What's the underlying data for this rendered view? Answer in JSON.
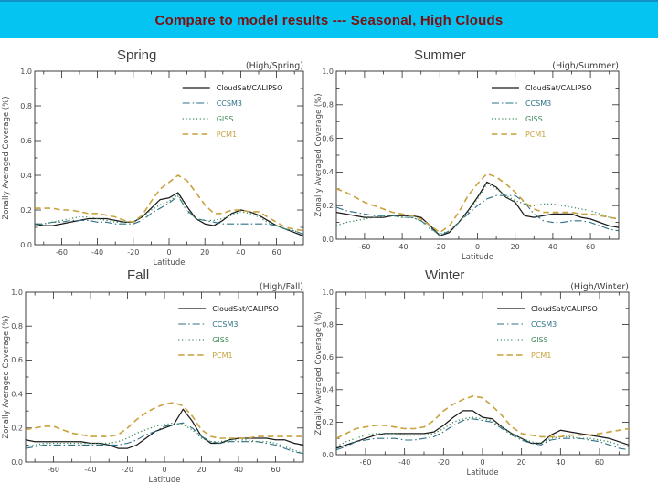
{
  "header": {
    "title": "Compare to model results --- Seasonal, High Clouds",
    "bar_color": "#05c4f2",
    "top_edge_color": "#1193c7",
    "text_color": "#7d0f0f"
  },
  "colors": {
    "cloudsat": "#1a1a1a",
    "ccsm3": "#2e7087",
    "giss": "#3c8a5a",
    "pcm1": "#c9a13d"
  },
  "legend_labels": [
    "CloudSat/CALIPSO",
    "CCSM3",
    "GISS",
    "PCM1"
  ],
  "chart_data": [
    {
      "id": "spring",
      "season_label": "Spring",
      "title": "(High/Spring)",
      "type": "line",
      "xlabel": "Latitude",
      "ylabel": "Zonally Averaged Coverage (%)",
      "xlim": [
        -75,
        75
      ],
      "ylim": [
        0,
        1.0
      ],
      "xticks": [
        -60,
        -40,
        -20,
        0,
        20,
        40,
        60
      ],
      "yticks": [
        0.0,
        0.2,
        0.4,
        0.6,
        0.8,
        1.0
      ],
      "legend_position": "top-right-inside",
      "grid": false,
      "x": [
        -75,
        -70,
        -65,
        -60,
        -55,
        -50,
        -45,
        -40,
        -35,
        -30,
        -25,
        -20,
        -15,
        -10,
        -5,
        0,
        5,
        10,
        15,
        20,
        25,
        30,
        35,
        40,
        45,
        50,
        55,
        60,
        65,
        70,
        75
      ],
      "series": [
        {
          "name": "CloudSat/CALIPSO",
          "color_key": "cloudsat",
          "style": "solid",
          "values": [
            0.12,
            0.11,
            0.11,
            0.12,
            0.13,
            0.14,
            0.15,
            0.15,
            0.15,
            0.14,
            0.13,
            0.13,
            0.16,
            0.21,
            0.26,
            0.27,
            0.3,
            0.22,
            0.15,
            0.12,
            0.11,
            0.14,
            0.18,
            0.2,
            0.19,
            0.17,
            0.14,
            0.11,
            0.09,
            0.07,
            0.05
          ]
        },
        {
          "name": "CCSM3",
          "color_key": "ccsm3",
          "style": "dashdot",
          "values": [
            0.12,
            0.12,
            0.13,
            0.13,
            0.14,
            0.14,
            0.14,
            0.13,
            0.13,
            0.12,
            0.12,
            0.12,
            0.14,
            0.18,
            0.21,
            0.24,
            0.28,
            0.2,
            0.15,
            0.14,
            0.13,
            0.12,
            0.12,
            0.12,
            0.12,
            0.12,
            0.12,
            0.11,
            0.09,
            0.08,
            0.06
          ]
        },
        {
          "name": "GISS",
          "color_key": "giss",
          "style": "dotted",
          "values": [
            0.11,
            0.12,
            0.13,
            0.14,
            0.15,
            0.16,
            0.16,
            0.15,
            0.14,
            0.13,
            0.13,
            0.13,
            0.16,
            0.2,
            0.23,
            0.25,
            0.29,
            0.19,
            0.15,
            0.14,
            0.14,
            0.15,
            0.17,
            0.19,
            0.18,
            0.16,
            0.13,
            0.11,
            0.09,
            0.08,
            0.06
          ]
        },
        {
          "name": "PCM1",
          "color_key": "pcm1",
          "style": "dashed",
          "values": [
            0.21,
            0.21,
            0.21,
            0.2,
            0.2,
            0.19,
            0.18,
            0.18,
            0.17,
            0.16,
            0.14,
            0.13,
            0.17,
            0.25,
            0.32,
            0.36,
            0.4,
            0.37,
            0.3,
            0.23,
            0.18,
            0.18,
            0.2,
            0.2,
            0.19,
            0.19,
            0.16,
            0.13,
            0.1,
            0.09,
            0.08
          ]
        }
      ]
    },
    {
      "id": "summer",
      "season_label": "Summer",
      "title": "(High/Summer)",
      "type": "line",
      "xlabel": "Latitude",
      "ylabel": "Zonally Averaged Coverage (%)",
      "xlim": [
        -75,
        75
      ],
      "ylim": [
        0,
        1.0
      ],
      "xticks": [
        -60,
        -40,
        -20,
        0,
        20,
        40,
        60
      ],
      "yticks": [
        0.0,
        0.2,
        0.4,
        0.6,
        0.8,
        1.0
      ],
      "legend_position": "top-right-inside",
      "grid": false,
      "x": [
        -75,
        -70,
        -65,
        -60,
        -55,
        -50,
        -45,
        -40,
        -35,
        -30,
        -25,
        -20,
        -15,
        -10,
        -5,
        0,
        5,
        10,
        15,
        20,
        25,
        30,
        35,
        40,
        45,
        50,
        55,
        60,
        65,
        70,
        75
      ],
      "series": [
        {
          "name": "CloudSat/CALIPSO",
          "color_key": "cloudsat",
          "style": "solid",
          "values": [
            0.16,
            0.15,
            0.14,
            0.13,
            0.13,
            0.13,
            0.14,
            0.14,
            0.14,
            0.13,
            0.08,
            0.02,
            0.04,
            0.1,
            0.17,
            0.25,
            0.34,
            0.31,
            0.25,
            0.22,
            0.14,
            0.13,
            0.14,
            0.15,
            0.15,
            0.15,
            0.13,
            0.12,
            0.1,
            0.08,
            0.07
          ]
        },
        {
          "name": "CCSM3",
          "color_key": "ccsm3",
          "style": "dashdot",
          "values": [
            0.19,
            0.17,
            0.16,
            0.15,
            0.14,
            0.14,
            0.14,
            0.13,
            0.13,
            0.11,
            0.07,
            0.02,
            0.05,
            0.1,
            0.15,
            0.2,
            0.24,
            0.26,
            0.26,
            0.26,
            0.22,
            0.15,
            0.11,
            0.1,
            0.1,
            0.11,
            0.11,
            0.1,
            0.08,
            0.06,
            0.05
          ]
        },
        {
          "name": "GISS",
          "color_key": "giss",
          "style": "dotted",
          "values": [
            0.08,
            0.1,
            0.11,
            0.12,
            0.13,
            0.14,
            0.14,
            0.13,
            0.13,
            0.11,
            0.06,
            0.03,
            0.05,
            0.1,
            0.16,
            0.24,
            0.33,
            0.3,
            0.26,
            0.23,
            0.21,
            0.2,
            0.21,
            0.21,
            0.2,
            0.19,
            0.18,
            0.17,
            0.15,
            0.13,
            0.12
          ]
        },
        {
          "name": "PCM1",
          "color_key": "pcm1",
          "style": "dashed",
          "values": [
            0.3,
            0.28,
            0.25,
            0.22,
            0.2,
            0.18,
            0.16,
            0.15,
            0.14,
            0.12,
            0.08,
            0.04,
            0.08,
            0.16,
            0.26,
            0.33,
            0.39,
            0.37,
            0.33,
            0.28,
            0.22,
            0.18,
            0.16,
            0.16,
            0.16,
            0.16,
            0.15,
            0.15,
            0.14,
            0.13,
            0.12
          ]
        }
      ]
    },
    {
      "id": "fall",
      "season_label": "Fall",
      "title": "(High/Fall)",
      "type": "line",
      "xlabel": "Latitude",
      "ylabel": "Zonally Averaged Coverage (%)",
      "xlim": [
        -75,
        75
      ],
      "ylim": [
        0,
        1.0
      ],
      "xticks": [
        -60,
        -40,
        -20,
        0,
        20,
        40,
        60
      ],
      "yticks": [
        0.0,
        0.2,
        0.4,
        0.6,
        0.8,
        1.0
      ],
      "legend_position": "top-right-inside",
      "grid": false,
      "x": [
        -75,
        -70,
        -65,
        -60,
        -55,
        -50,
        -45,
        -40,
        -35,
        -30,
        -25,
        -20,
        -15,
        -10,
        -5,
        0,
        5,
        10,
        15,
        20,
        25,
        30,
        35,
        40,
        45,
        50,
        55,
        60,
        65,
        70,
        75
      ],
      "series": [
        {
          "name": "CloudSat/CALIPSO",
          "color_key": "cloudsat",
          "style": "solid",
          "values": [
            0.13,
            0.12,
            0.12,
            0.12,
            0.12,
            0.12,
            0.12,
            0.11,
            0.11,
            0.1,
            0.08,
            0.08,
            0.1,
            0.14,
            0.18,
            0.2,
            0.22,
            0.31,
            0.24,
            0.15,
            0.11,
            0.11,
            0.13,
            0.14,
            0.14,
            0.14,
            0.14,
            0.13,
            0.13,
            0.11,
            0.1
          ]
        },
        {
          "name": "CCSM3",
          "color_key": "ccsm3",
          "style": "dashdot",
          "values": [
            0.08,
            0.09,
            0.1,
            0.1,
            0.1,
            0.1,
            0.1,
            0.1,
            0.1,
            0.1,
            0.1,
            0.11,
            0.13,
            0.16,
            0.18,
            0.21,
            0.22,
            0.23,
            0.2,
            0.15,
            0.12,
            0.11,
            0.12,
            0.12,
            0.12,
            0.12,
            0.11,
            0.1,
            0.08,
            0.06,
            0.05
          ]
        },
        {
          "name": "GISS",
          "color_key": "giss",
          "style": "dotted",
          "values": [
            0.09,
            0.1,
            0.11,
            0.11,
            0.11,
            0.11,
            0.11,
            0.11,
            0.11,
            0.11,
            0.12,
            0.14,
            0.17,
            0.19,
            0.21,
            0.22,
            0.23,
            0.22,
            0.19,
            0.14,
            0.12,
            0.12,
            0.13,
            0.13,
            0.13,
            0.12,
            0.12,
            0.11,
            0.09,
            0.07,
            0.05
          ]
        },
        {
          "name": "PCM1",
          "color_key": "pcm1",
          "style": "dashed",
          "values": [
            0.19,
            0.2,
            0.21,
            0.21,
            0.19,
            0.17,
            0.16,
            0.15,
            0.15,
            0.15,
            0.16,
            0.2,
            0.25,
            0.29,
            0.32,
            0.34,
            0.35,
            0.33,
            0.27,
            0.19,
            0.15,
            0.14,
            0.14,
            0.14,
            0.14,
            0.15,
            0.15,
            0.15,
            0.15,
            0.15,
            0.15
          ]
        }
      ]
    },
    {
      "id": "winter",
      "season_label": "Winter",
      "title": "(High/Winter)",
      "type": "line",
      "xlabel": "Latitude",
      "ylabel": "Zonally Averaged Coverage (%)",
      "xlim": [
        -75,
        75
      ],
      "ylim": [
        0,
        1.0
      ],
      "xticks": [
        -60,
        -40,
        -20,
        0,
        20,
        40,
        60
      ],
      "yticks": [
        0.0,
        0.2,
        0.4,
        0.6,
        0.8,
        1.0
      ],
      "legend_position": "top-right-inside",
      "grid": false,
      "x": [
        -75,
        -70,
        -65,
        -60,
        -55,
        -50,
        -45,
        -40,
        -35,
        -30,
        -25,
        -20,
        -15,
        -10,
        -5,
        0,
        5,
        10,
        15,
        20,
        25,
        30,
        35,
        40,
        45,
        50,
        55,
        60,
        65,
        70,
        75
      ],
      "series": [
        {
          "name": "CloudSat/CALIPSO",
          "color_key": "cloudsat",
          "style": "solid",
          "values": [
            0.04,
            0.06,
            0.08,
            0.1,
            0.12,
            0.13,
            0.13,
            0.13,
            0.13,
            0.13,
            0.14,
            0.18,
            0.23,
            0.27,
            0.27,
            0.23,
            0.22,
            0.17,
            0.13,
            0.1,
            0.07,
            0.07,
            0.12,
            0.15,
            0.14,
            0.13,
            0.12,
            0.11,
            0.1,
            0.08,
            0.06
          ]
        },
        {
          "name": "CCSM3",
          "color_key": "ccsm3",
          "style": "dashdot",
          "values": [
            0.03,
            0.05,
            0.08,
            0.09,
            0.1,
            0.1,
            0.1,
            0.09,
            0.09,
            0.1,
            0.11,
            0.14,
            0.18,
            0.21,
            0.22,
            0.21,
            0.2,
            0.16,
            0.12,
            0.09,
            0.07,
            0.06,
            0.09,
            0.1,
            0.1,
            0.1,
            0.09,
            0.08,
            0.06,
            0.04,
            0.03
          ]
        },
        {
          "name": "GISS",
          "color_key": "giss",
          "style": "dotted",
          "values": [
            0.05,
            0.08,
            0.1,
            0.12,
            0.13,
            0.13,
            0.13,
            0.12,
            0.12,
            0.12,
            0.13,
            0.16,
            0.2,
            0.22,
            0.23,
            0.22,
            0.21,
            0.17,
            0.13,
            0.1,
            0.08,
            0.07,
            0.1,
            0.11,
            0.11,
            0.1,
            0.1,
            0.09,
            0.08,
            0.06,
            0.05
          ]
        },
        {
          "name": "PCM1",
          "color_key": "pcm1",
          "style": "dashed",
          "values": [
            0.1,
            0.13,
            0.16,
            0.17,
            0.18,
            0.18,
            0.17,
            0.16,
            0.16,
            0.17,
            0.21,
            0.27,
            0.31,
            0.34,
            0.36,
            0.35,
            0.3,
            0.24,
            0.17,
            0.13,
            0.12,
            0.11,
            0.11,
            0.11,
            0.12,
            0.12,
            0.12,
            0.13,
            0.14,
            0.15,
            0.16
          ]
        }
      ]
    }
  ]
}
